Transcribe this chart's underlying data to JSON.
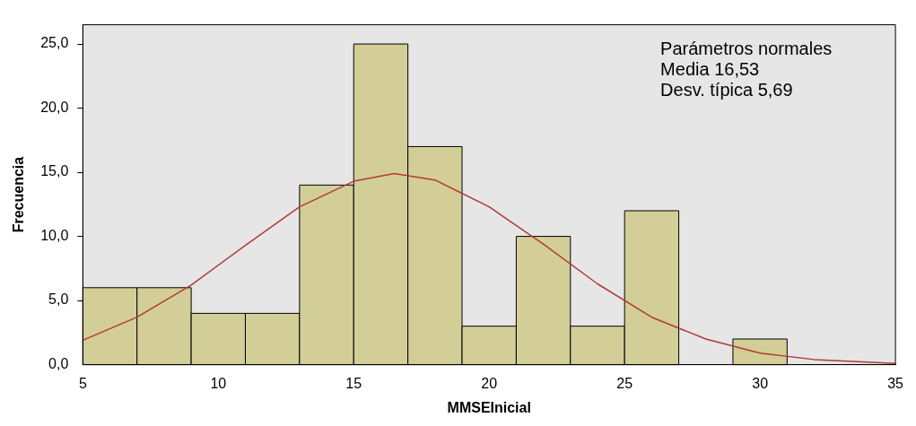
{
  "chart_data": {
    "type": "histogram",
    "xlabel": "MMSEInicial",
    "ylabel": "Frecuencia",
    "bins": [
      5,
      7,
      9,
      11,
      13,
      15,
      17,
      19,
      21,
      23,
      25,
      27,
      29,
      31,
      33,
      35
    ],
    "values": [
      6,
      6,
      4,
      4,
      14,
      25,
      17,
      3,
      10,
      3,
      12,
      0,
      2,
      0,
      0
    ],
    "color": "#d3ce97",
    "series": [
      {
        "type": "line",
        "color": "#b03a3a",
        "x": [
          5,
          7,
          9,
          11,
          13,
          15,
          16.5,
          18,
          20,
          22,
          24,
          26,
          28,
          30,
          32,
          35
        ],
        "values": [
          1.9,
          3.7,
          6.2,
          9.3,
          12.3,
          14.3,
          14.9,
          14.4,
          12.3,
          9.4,
          6.3,
          3.7,
          2.0,
          0.9,
          0.4,
          0.1
        ]
      }
    ],
    "xlim": [
      5,
      35
    ],
    "xticks": [
      5,
      10,
      15,
      20,
      25,
      30,
      35
    ],
    "ylim": [
      0,
      26.5
    ],
    "yticks": [
      {
        "value": 0,
        "label": "0,0"
      },
      {
        "value": 5,
        "label": "5,0"
      },
      {
        "value": 10,
        "label": "10,0"
      },
      {
        "value": 15,
        "label": "15,0"
      },
      {
        "value": 20,
        "label": "20,0"
      },
      {
        "value": 25,
        "label": "25,0"
      }
    ],
    "annotations": [
      "Parámetros normales",
      "Media 16,53",
      "Desv. típica 5,69"
    ],
    "grid": false,
    "legend": false
  }
}
